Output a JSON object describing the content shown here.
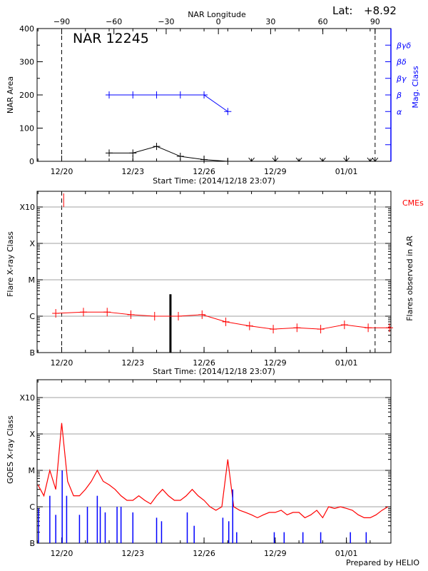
{
  "lat_label": "Lat:",
  "lat_value": "+8.92",
  "footer": "Prepared by HELIO",
  "colors": {
    "area": "#000000",
    "mag": "#0000ff",
    "flare": "#ff0000",
    "goes_long": "#ff0000",
    "goes_short": "#0000ff",
    "grid": "#a0a0a0"
  },
  "chart_data": [
    {
      "type": "line",
      "title": "NAR 12245",
      "xlabel": "Start Time: (2014/12/18 23:07)",
      "x_start": "2014-12-18T23:07Z",
      "x_end": "2015-01-02T21:00Z",
      "x_ticks": [
        {
          "t": "2014-12-20T00:00Z",
          "label": "12/20"
        },
        {
          "t": "2014-12-23T00:00Z",
          "label": "12/23"
        },
        {
          "t": "2014-12-26T00:00Z",
          "label": "12/26"
        },
        {
          "t": "2014-12-29T00:00Z",
          "label": "12/29"
        },
        {
          "t": "2015-01-01T00:00Z",
          "label": "01/01"
        }
      ],
      "top_axis_label": "NAR Longitude",
      "top_ticks": [
        -90,
        -60,
        -30,
        0,
        30,
        60,
        90
      ],
      "ylabel": "NAR Area",
      "ylim": [
        0,
        400
      ],
      "y_ticks": [
        0,
        100,
        200,
        300,
        400
      ],
      "y2label": "Mag. Class",
      "y2_ticks": [
        {
          "v": 50,
          "label": ""
        },
        {
          "v": 100,
          "label": ""
        },
        {
          "v": 150,
          "label": "α"
        },
        {
          "v": 200,
          "label": "β"
        },
        {
          "v": 250,
          "label": "βγ"
        },
        {
          "v": 300,
          "label": "βδ"
        },
        {
          "v": 350,
          "label": "βγδ"
        }
      ],
      "limb_lines": [
        "2014-12-20T00:00Z",
        "2015-01-02T05:00Z"
      ],
      "area_series": [
        {
          "t": "2014-12-22T00:00Z",
          "v": 25
        },
        {
          "t": "2014-12-23T00:00Z",
          "v": 25
        },
        {
          "t": "2014-12-24T00:00Z",
          "v": 45
        },
        {
          "t": "2014-12-25T00:00Z",
          "v": 15
        },
        {
          "t": "2014-12-26T00:00Z",
          "v": 5
        },
        {
          "t": "2014-12-27T00:00Z",
          "v": 0
        }
      ],
      "area_projected": [
        "2014-12-28T00:00Z",
        "2014-12-29T00:00Z",
        "2014-12-30T00:00Z",
        "2014-12-31T00:00Z",
        "2015-01-01T00:00Z",
        "2015-01-02T00:00Z",
        "2015-01-02T05:00Z"
      ],
      "mag_series": [
        {
          "t": "2014-12-22T00:00Z",
          "class": "β"
        },
        {
          "t": "2014-12-23T00:00Z",
          "class": "β"
        },
        {
          "t": "2014-12-24T00:00Z",
          "class": "β"
        },
        {
          "t": "2014-12-25T00:00Z",
          "class": "β"
        },
        {
          "t": "2014-12-26T00:00Z",
          "class": "β"
        },
        {
          "t": "2014-12-27T00:00Z",
          "class": "α"
        }
      ]
    },
    {
      "type": "line",
      "xlabel": "Start Time: (2014/12/18 23:07)",
      "ylabel": "Flare X-ray Class",
      "y2label": "Flares observed in AR",
      "cme_label": "CMEs",
      "y_scale": "log",
      "y_ticks": [
        "B",
        "C",
        "M",
        "X",
        "X10"
      ],
      "grid": true,
      "flare_series": [
        {
          "t": "2014-12-19T18:00Z",
          "c": "C1.2"
        },
        {
          "t": "2014-12-20T22:00Z",
          "c": "C1.3"
        },
        {
          "t": "2014-12-21T22:00Z",
          "c": "C1.3"
        },
        {
          "t": "2014-12-22T22:00Z",
          "c": "C1.1"
        },
        {
          "t": "2014-12-23T22:00Z",
          "c": "C1.0"
        },
        {
          "t": "2014-12-24T22:00Z",
          "c": "C1.0"
        },
        {
          "t": "2014-12-25T22:00Z",
          "c": "C1.1"
        },
        {
          "t": "2014-12-26T22:00Z",
          "c": "B7.0"
        },
        {
          "t": "2014-12-27T22:00Z",
          "c": "B5.4"
        },
        {
          "t": "2014-12-28T22:00Z",
          "c": "B4.4"
        },
        {
          "t": "2014-12-29T22:00Z",
          "c": "B4.8"
        },
        {
          "t": "2014-12-30T22:00Z",
          "c": "B4.4"
        },
        {
          "t": "2014-12-31T22:00Z",
          "c": "B5.8"
        },
        {
          "t": "2015-01-01T22:00Z",
          "c": "B4.8"
        },
        {
          "t": "2015-01-02T22:00Z",
          "c": "B4.8"
        }
      ],
      "observed_flares": [
        {
          "t": "2014-12-24T14:00Z",
          "c": "C4.0"
        }
      ],
      "cmes": [
        {
          "t": "2014-12-20T02:00Z"
        }
      ]
    },
    {
      "type": "line",
      "ylabel": "GOES X-ray Class",
      "y_scale": "log",
      "y_ticks": [
        "B",
        "C",
        "M",
        "X",
        "X10"
      ],
      "grid": true,
      "long_channel": [
        "C4",
        "C2",
        "M1",
        "C3",
        "X2",
        "C5",
        "C2",
        "C2",
        "C3",
        "C5",
        "M1",
        "C5",
        "C4",
        "C3",
        "C2",
        "C1.5",
        "C1.5",
        "C2",
        "C1.5",
        "C1.2",
        "C2",
        "C3",
        "C2",
        "C1.5",
        "C1.5",
        "C2",
        "C3",
        "C2",
        "C1.5",
        "C1",
        "B8",
        "C1",
        "M2",
        "C1",
        "B8",
        "B7",
        "B6",
        "B5",
        "B6",
        "B7",
        "B7",
        "B8",
        "B6",
        "B7",
        "B7",
        "B5",
        "B6",
        "B8",
        "B5",
        "C1",
        "B9",
        "C1",
        "B9",
        "B8",
        "B6",
        "B5",
        "B5",
        "B6",
        "B8",
        "C1"
      ],
      "long_channel_start": "2014-12-19T00:00Z",
      "long_channel_step_hours": 6,
      "short_channel_peaks": [
        {
          "t": "2014-12-19T00:30Z",
          "c": "B9"
        },
        {
          "t": "2014-12-19T12:00Z",
          "c": "C2"
        },
        {
          "t": "2014-12-19T18:00Z",
          "c": "B6"
        },
        {
          "t": "2014-12-20T00:30Z",
          "c": "M1"
        },
        {
          "t": "2014-12-20T05:00Z",
          "c": "C2"
        },
        {
          "t": "2014-12-20T18:00Z",
          "c": "B6"
        },
        {
          "t": "2014-12-21T02:00Z",
          "c": "C1"
        },
        {
          "t": "2014-12-21T12:00Z",
          "c": "C2"
        },
        {
          "t": "2014-12-21T15:00Z",
          "c": "C1"
        },
        {
          "t": "2014-12-21T20:00Z",
          "c": "B7"
        },
        {
          "t": "2014-12-22T08:00Z",
          "c": "C1"
        },
        {
          "t": "2014-12-22T12:00Z",
          "c": "C1"
        },
        {
          "t": "2014-12-23T00:00Z",
          "c": "B7"
        },
        {
          "t": "2014-12-24T00:00Z",
          "c": "B5"
        },
        {
          "t": "2014-12-24T05:00Z",
          "c": "B4"
        },
        {
          "t": "2014-12-25T07:00Z",
          "c": "B7"
        },
        {
          "t": "2014-12-25T14:00Z",
          "c": "B3"
        },
        {
          "t": "2014-12-26T19:00Z",
          "c": "B5"
        },
        {
          "t": "2014-12-27T01:00Z",
          "c": "B4"
        },
        {
          "t": "2014-12-27T05:00Z",
          "c": "C3"
        },
        {
          "t": "2014-12-27T09:00Z",
          "c": "B2"
        },
        {
          "t": "2014-12-28T23:00Z",
          "c": "B2"
        },
        {
          "t": "2014-12-29T09:00Z",
          "c": "B2"
        },
        {
          "t": "2014-12-30T04:00Z",
          "c": "B2"
        },
        {
          "t": "2014-12-30T22:00Z",
          "c": "B2"
        },
        {
          "t": "2015-01-01T04:00Z",
          "c": "B2"
        },
        {
          "t": "2015-01-01T20:00Z",
          "c": "B2"
        }
      ]
    }
  ]
}
